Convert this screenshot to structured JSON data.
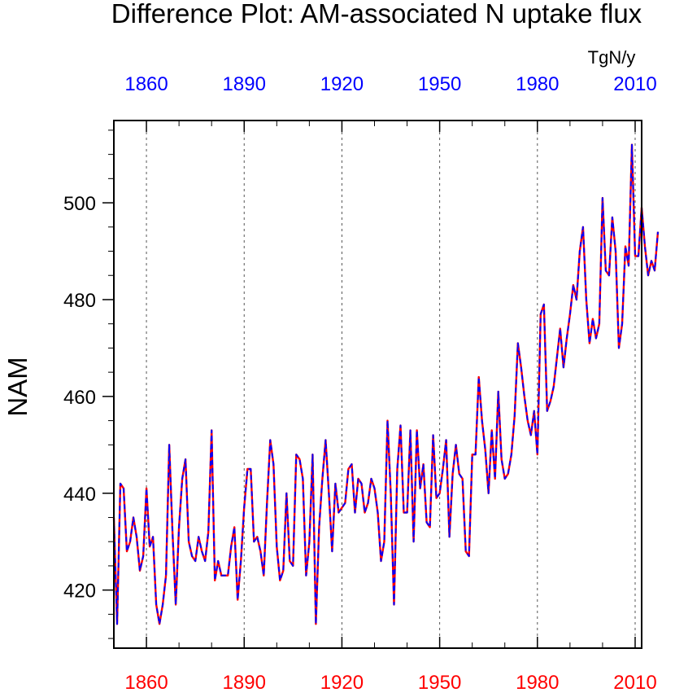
{
  "chart_data": {
    "type": "line",
    "title": "Difference Plot: AM-associated N uptake flux",
    "units_label": "TgN/y",
    "ylabel": "NAM",
    "xlabel": "",
    "xlim": [
      1850,
      2012
    ],
    "ylim": [
      408,
      517
    ],
    "grid": "vertical dashed",
    "x_ticks": [
      1860,
      1890,
      1920,
      1950,
      1980,
      2010
    ],
    "y_ticks": [
      420,
      440,
      460,
      480,
      500
    ],
    "tick_colors": {
      "bottom": "#ff0000",
      "top": "#0000ff",
      "left": "#000000"
    },
    "series": [
      {
        "name": "series-red",
        "color": "#ff0000",
        "style": "solid"
      },
      {
        "name": "series-blue",
        "color": "#0000ff",
        "style": "dashed"
      }
    ],
    "x_start": 1850,
    "values": [
      435,
      413,
      442,
      441,
      428,
      430,
      435,
      431,
      424,
      427,
      441,
      429,
      431,
      417,
      413,
      417,
      423,
      450,
      432,
      417,
      433,
      443,
      447,
      430,
      427,
      426,
      431,
      428,
      426,
      432,
      453,
      422,
      426,
      423,
      423,
      423,
      429,
      433,
      418,
      426,
      437,
      445,
      445,
      430,
      431,
      428,
      423,
      438,
      451,
      446,
      429,
      422,
      424,
      440,
      426,
      425,
      448,
      447,
      443,
      423,
      430,
      448,
      413,
      433,
      443,
      451,
      440,
      428,
      442,
      436,
      437,
      438,
      445,
      446,
      436,
      443,
      442,
      436,
      438,
      443,
      441,
      436,
      426,
      430,
      455,
      440,
      417,
      445,
      454,
      436,
      436,
      453,
      430,
      453,
      441,
      446,
      434,
      433,
      452,
      439,
      440,
      445,
      451,
      431,
      444,
      450,
      444,
      443,
      428,
      427,
      448,
      448,
      464,
      455,
      449,
      440,
      453,
      443,
      461,
      447,
      443,
      444,
      448,
      456,
      471,
      466,
      460,
      455,
      452,
      457,
      448,
      477,
      479,
      457,
      459,
      462,
      468,
      474,
      466,
      472,
      477,
      483,
      480,
      490,
      495,
      480,
      471,
      476,
      472,
      475,
      501,
      486,
      485,
      497,
      490,
      470,
      475,
      491,
      487,
      512,
      489,
      489,
      499,
      491,
      485,
      488,
      486,
      494
    ]
  }
}
